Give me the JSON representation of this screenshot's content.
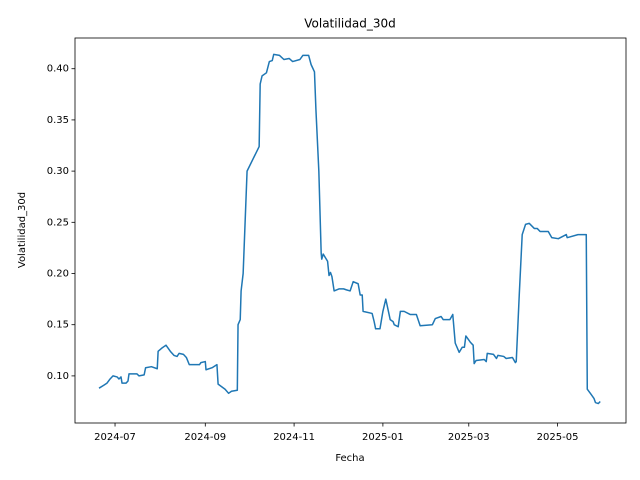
{
  "chart_data": {
    "type": "line",
    "title": "Volatilidad_30d",
    "xlabel": "Fecha",
    "ylabel": "Volatilidad_30d",
    "x": [
      -11,
      -7.6,
      -5.5,
      -3.4,
      -1.4,
      1.4,
      2.7,
      4.1,
      4.8,
      7.6,
      8.9,
      9.6,
      15,
      16.5,
      20,
      21,
      25,
      29,
      29.6,
      32,
      35,
      38,
      40.5,
      42.6,
      44,
      47,
      49,
      51,
      58,
      59,
      62,
      62.5,
      66.7,
      70,
      70.8,
      75.6,
      78,
      80,
      84,
      84.5,
      86,
      86.6,
      88,
      90.7,
      99,
      99.7,
      101,
      104,
      106,
      108,
      109,
      113,
      116,
      119.6,
      122,
      127,
      129,
      133,
      134.7,
      137,
      138,
      140,
      141.6,
      142,
      143,
      146,
      147,
      148,
      149,
      150.5,
      154,
      157,
      159,
      161.5,
      163.6,
      167,
      168.4,
      169.8,
      170.4,
      176.6,
      178,
      179,
      182,
      184,
      186,
      189,
      191,
      191.8,
      194.5,
      196,
      198.6,
      202.7,
      207,
      209.6,
      218,
      220,
      224,
      225.4,
      230,
      232,
      233.7,
      236.4,
      238.5,
      240,
      241,
      244,
      246,
      246.7,
      248,
      253.6,
      255,
      255.7,
      260,
      262,
      263,
      267,
      268.7,
      273,
      275,
      275.6,
      277.7,
      279.7,
      282,
      284.5,
      288,
      290,
      292,
      297.6,
      300,
      304.5,
      310,
      310.6,
      318,
      323.7,
      324.4,
      327,
      329,
      330,
      332,
      333.3
    ],
    "series": [
      {
        "name": "Volatilidad_30d",
        "color": "#1f77b4",
        "values": [
          0.088,
          0.091,
          0.093,
          0.097,
          0.1,
          0.099,
          0.097,
          0.099,
          0.093,
          0.093,
          0.095,
          0.102,
          0.102,
          0.1,
          0.101,
          0.108,
          0.109,
          0.107,
          0.124,
          0.127,
          0.13,
          0.124,
          0.12,
          0.119,
          0.122,
          0.121,
          0.118,
          0.111,
          0.111,
          0.113,
          0.114,
          0.106,
          0.108,
          0.111,
          0.092,
          0.087,
          0.083,
          0.085,
          0.086,
          0.15,
          0.155,
          0.183,
          0.2,
          0.3,
          0.324,
          0.385,
          0.393,
          0.396,
          0.407,
          0.408,
          0.414,
          0.413,
          0.409,
          0.41,
          0.407,
          0.409,
          0.413,
          0.413,
          0.404,
          0.397,
          0.36,
          0.3,
          0.22,
          0.214,
          0.219,
          0.212,
          0.198,
          0.201,
          0.197,
          0.183,
          0.185,
          0.185,
          0.184,
          0.183,
          0.192,
          0.19,
          0.179,
          0.179,
          0.163,
          0.161,
          0.153,
          0.146,
          0.146,
          0.163,
          0.175,
          0.155,
          0.153,
          0.15,
          0.148,
          0.163,
          0.163,
          0.16,
          0.16,
          0.149,
          0.15,
          0.156,
          0.158,
          0.155,
          0.155,
          0.16,
          0.132,
          0.123,
          0.128,
          0.128,
          0.139,
          0.133,
          0.13,
          0.112,
          0.115,
          0.116,
          0.114,
          0.122,
          0.121,
          0.117,
          0.12,
          0.119,
          0.117,
          0.118,
          0.113,
          0.114,
          0.18,
          0.238,
          0.248,
          0.249,
          0.244,
          0.244,
          0.241,
          0.241,
          0.235,
          0.234,
          0.238,
          0.235,
          0.238,
          0.238,
          0.087,
          0.082,
          0.078,
          0.074,
          0.073,
          0.075
        ]
      }
    ],
    "xlim": [
      -27.5,
      351
    ],
    "ylim": [
      0.054,
      0.43
    ],
    "xticks": [
      {
        "value": 0,
        "label": "2024-07"
      },
      {
        "value": 62,
        "label": "2024-09"
      },
      {
        "value": 123,
        "label": "2024-11"
      },
      {
        "value": 184,
        "label": "2025-01"
      },
      {
        "value": 243,
        "label": "2025-03"
      },
      {
        "value": 304,
        "label": "2025-05"
      }
    ],
    "yticks": [
      {
        "value": 0.1,
        "label": "0.10"
      },
      {
        "value": 0.15,
        "label": "0.15"
      },
      {
        "value": 0.2,
        "label": "0.20"
      },
      {
        "value": 0.25,
        "label": "0.25"
      },
      {
        "value": 0.3,
        "label": "0.30"
      },
      {
        "value": 0.35,
        "label": "0.35"
      },
      {
        "value": 0.4,
        "label": "0.40"
      }
    ]
  }
}
